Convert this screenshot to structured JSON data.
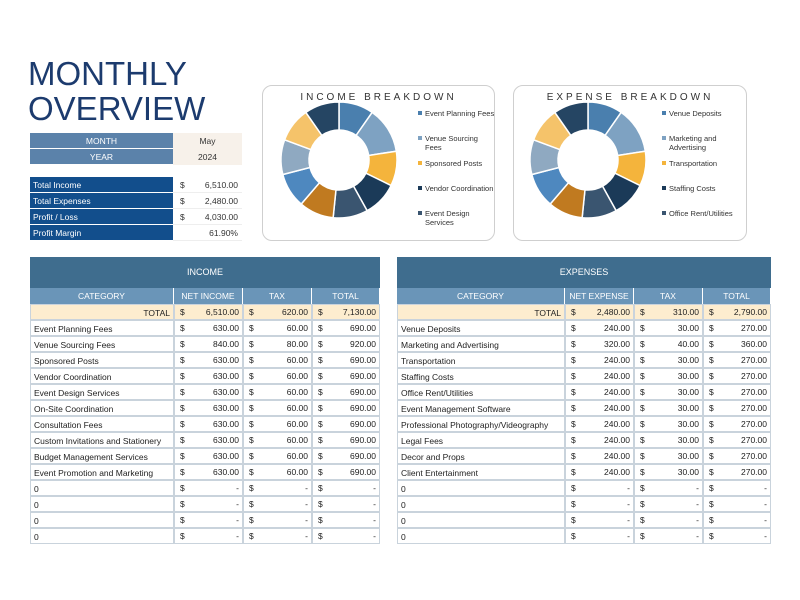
{
  "header": {
    "title": "MONTHLY OVERVIEW"
  },
  "period": {
    "rows": [
      [
        "MONTH",
        "May"
      ],
      [
        "YEAR",
        "2024"
      ]
    ]
  },
  "summary": {
    "rows": [
      [
        "Total Income",
        "$",
        "6,510.00"
      ],
      [
        "Total Expenses",
        "$",
        "2,480.00"
      ],
      [
        "Profit / Loss",
        "$",
        "4,030.00"
      ],
      [
        "Profit Margin",
        "61.90%"
      ]
    ]
  },
  "income_chart": {
    "title": "INCOME BREAKDOWN",
    "colors": [
      "#4a7fae",
      "#7ea2c2",
      "#f4b43c",
      "#1b3a58",
      "#3a5570",
      "#c07a20",
      "#4e88bf",
      "#8fa9c1",
      "#f5c36a",
      "#254563"
    ]
  },
  "expense_chart": {
    "title": "EXPENSE BREAKDOWN",
    "colors": [
      "#4a7fae",
      "#7ea2c2",
      "#f4b43c",
      "#1b3a58",
      "#3a5570",
      "#c07a20",
      "#4e88bf",
      "#8fa9c1",
      "#f5c36a",
      "#254563"
    ]
  },
  "income_table": {
    "title": "INCOME",
    "columns": [
      "CATEGORY",
      "NET INCOME",
      "TAX",
      "TOTAL"
    ],
    "total": [
      "TOTAL",
      "$",
      "6,510.00",
      "$",
      "620.00",
      "$",
      "7,130.00"
    ],
    "rows": [
      [
        "Event Planning Fees",
        "$",
        "630.00",
        "$",
        "60.00",
        "$",
        "690.00"
      ],
      [
        "Venue Sourcing Fees",
        "$",
        "840.00",
        "$",
        "80.00",
        "$",
        "920.00"
      ],
      [
        "Sponsored Posts",
        "$",
        "630.00",
        "$",
        "60.00",
        "$",
        "690.00"
      ],
      [
        "Vendor Coordination",
        "$",
        "630.00",
        "$",
        "60.00",
        "$",
        "690.00"
      ],
      [
        "Event Design Services",
        "$",
        "630.00",
        "$",
        "60.00",
        "$",
        "690.00"
      ],
      [
        "On-Site Coordination",
        "$",
        "630.00",
        "$",
        "60.00",
        "$",
        "690.00"
      ],
      [
        "Consultation Fees",
        "$",
        "630.00",
        "$",
        "60.00",
        "$",
        "690.00"
      ],
      [
        "Custom Invitations and Stationery",
        "$",
        "630.00",
        "$",
        "60.00",
        "$",
        "690.00"
      ],
      [
        "Budget Management Services",
        "$",
        "630.00",
        "$",
        "60.00",
        "$",
        "690.00"
      ],
      [
        "Event Promotion and Marketing",
        "$",
        "630.00",
        "$",
        "60.00",
        "$",
        "690.00"
      ],
      [
        "0",
        "$",
        "-",
        "$",
        "-",
        "$",
        "-"
      ],
      [
        "0",
        "$",
        "-",
        "$",
        "-",
        "$",
        "-"
      ],
      [
        "0",
        "$",
        "-",
        "$",
        "-",
        "$",
        "-"
      ],
      [
        "0",
        "$",
        "-",
        "$",
        "-",
        "$",
        "-"
      ]
    ]
  },
  "expense_table": {
    "title": "EXPENSES",
    "columns": [
      "CATEGORY",
      "NET EXPENSE",
      "TAX",
      "TOTAL"
    ],
    "total": [
      "TOTAL",
      "$",
      "2,480.00",
      "$",
      "310.00",
      "$",
      "2,790.00"
    ],
    "rows": [
      [
        "Venue Deposits",
        "$",
        "240.00",
        "$",
        "30.00",
        "$",
        "270.00"
      ],
      [
        "Marketing and Advertising",
        "$",
        "320.00",
        "$",
        "40.00",
        "$",
        "360.00"
      ],
      [
        "Transportation",
        "$",
        "240.00",
        "$",
        "30.00",
        "$",
        "270.00"
      ],
      [
        "Staffing Costs",
        "$",
        "240.00",
        "$",
        "30.00",
        "$",
        "270.00"
      ],
      [
        "Office Rent/Utilities",
        "$",
        "240.00",
        "$",
        "30.00",
        "$",
        "270.00"
      ],
      [
        "Event Management Software",
        "$",
        "240.00",
        "$",
        "30.00",
        "$",
        "270.00"
      ],
      [
        "Professional Photography/Videography",
        "$",
        "240.00",
        "$",
        "30.00",
        "$",
        "270.00"
      ],
      [
        "Legal Fees",
        "$",
        "240.00",
        "$",
        "30.00",
        "$",
        "270.00"
      ],
      [
        "Decor and Props",
        "$",
        "240.00",
        "$",
        "30.00",
        "$",
        "270.00"
      ],
      [
        "Client Entertainment",
        "$",
        "240.00",
        "$",
        "30.00",
        "$",
        "270.00"
      ],
      [
        "0",
        "$",
        "-",
        "$",
        "-",
        "$",
        "-"
      ],
      [
        "0",
        "$",
        "-",
        "$",
        "-",
        "$",
        "-"
      ],
      [
        "0",
        "$",
        "-",
        "$",
        "-",
        "$",
        "-"
      ],
      [
        "0",
        "$",
        "-",
        "$",
        "-",
        "$",
        "-"
      ]
    ]
  }
}
